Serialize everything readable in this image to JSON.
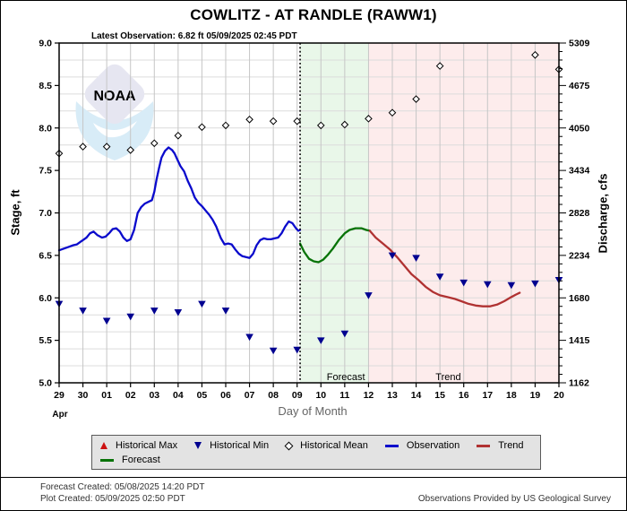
{
  "title": "COWLITZ - AT RANDLE  (RAWW1)",
  "subtitle": "Latest Observation: 6.82 ft 05/09/2025 02:45 PDT",
  "watermark": {
    "label": "NOAA"
  },
  "legend": {
    "items": [
      {
        "label": "Historical Max",
        "icon": "triangle-up-icon",
        "color": "#cc1111"
      },
      {
        "label": "Historical Min",
        "icon": "triangle-down-icon",
        "color": "#000090"
      },
      {
        "label": "Historical Mean",
        "icon": "diamond-icon",
        "color": "#000000"
      },
      {
        "label": "Observation",
        "icon": "line-swatch",
        "color": "#0a0acc"
      },
      {
        "label": "Trend",
        "icon": "line-swatch",
        "color": "#b03232"
      },
      {
        "label": "Forecast",
        "icon": "line-swatch",
        "color": "#077307"
      }
    ]
  },
  "footer": {
    "forecast_created": "Forecast Created: 05/08/2025 14:20 PDT",
    "plot_created": "Plot Created: 05/09/2025 02:50 PDT",
    "credit": "Observations Provided by US Geological Survey"
  },
  "chart_data": {
    "type": "line",
    "title": "COWLITZ - AT RANDLE  (RAWW1)",
    "xlabel": "Day of Month",
    "month_label": "Apr",
    "ylabel_left": "Stage, ft",
    "ylabel_right": "Discharge, cfs",
    "ylim": [
      5.0,
      9.0
    ],
    "x_days": 21,
    "grid": {
      "h_step_ft": 0.2,
      "v_step_days": 1
    },
    "x_ticks": [
      "29",
      "30",
      "01",
      "02",
      "03",
      "04",
      "05",
      "06",
      "07",
      "08",
      "09",
      "10",
      "11",
      "12",
      "13",
      "14",
      "15",
      "16",
      "17",
      "18",
      "19",
      "20"
    ],
    "y_left_ticks": [
      {
        "v": 9.0,
        "label": "9.0"
      },
      {
        "v": 8.5,
        "label": "8.5"
      },
      {
        "v": 8.0,
        "label": "8.0"
      },
      {
        "v": 7.5,
        "label": "7.5"
      },
      {
        "v": 7.0,
        "label": "7.0"
      },
      {
        "v": 6.5,
        "label": "6.5"
      },
      {
        "v": 6.0,
        "label": "6.0"
      },
      {
        "v": 5.5,
        "label": "5.5"
      },
      {
        "v": 5.0,
        "label": "5.0"
      }
    ],
    "y_right_ticks": [
      {
        "v": 9.0,
        "label": "5309"
      },
      {
        "v": 8.5,
        "label": "4675"
      },
      {
        "v": 8.0,
        "label": "4050"
      },
      {
        "v": 7.5,
        "label": "3434"
      },
      {
        "v": 7.0,
        "label": "2828"
      },
      {
        "v": 6.5,
        "label": "2234"
      },
      {
        "v": 6.0,
        "label": "1680"
      },
      {
        "v": 5.5,
        "label": "1415"
      },
      {
        "v": 5.0,
        "label": "1162"
      }
    ],
    "now_line_day": 10.125,
    "regions": [
      {
        "name": "forecast",
        "from": 10.125,
        "to": 13.0,
        "color": "#e9f7e9"
      },
      {
        "name": "trend",
        "from": 13.0,
        "to": 21.0,
        "color": "#fdecec"
      }
    ],
    "region_labels": [
      {
        "text": "Forecast",
        "x_day": 12.05
      },
      {
        "text": "Trend",
        "x_day": 16.35
      }
    ],
    "series": [
      {
        "name": "Observation",
        "color": "#0a0acc",
        "points": [
          [
            0,
            6.56
          ],
          [
            0.2,
            6.58
          ],
          [
            0.4,
            6.6
          ],
          [
            0.6,
            6.62
          ],
          [
            0.75,
            6.63
          ],
          [
            0.9,
            6.66
          ],
          [
            1.05,
            6.69
          ],
          [
            1.15,
            6.71
          ],
          [
            1.3,
            6.76
          ],
          [
            1.45,
            6.78
          ],
          [
            1.6,
            6.74
          ],
          [
            1.8,
            6.71
          ],
          [
            1.95,
            6.72
          ],
          [
            2.1,
            6.76
          ],
          [
            2.25,
            6.81
          ],
          [
            2.4,
            6.82
          ],
          [
            2.55,
            6.78
          ],
          [
            2.7,
            6.71
          ],
          [
            2.85,
            6.67
          ],
          [
            3.0,
            6.69
          ],
          [
            3.15,
            6.8
          ],
          [
            3.3,
            7.0
          ],
          [
            3.45,
            7.07
          ],
          [
            3.6,
            7.11
          ],
          [
            3.75,
            7.13
          ],
          [
            3.9,
            7.15
          ],
          [
            4.0,
            7.25
          ],
          [
            4.1,
            7.4
          ],
          [
            4.2,
            7.53
          ],
          [
            4.3,
            7.65
          ],
          [
            4.45,
            7.73
          ],
          [
            4.6,
            7.77
          ],
          [
            4.75,
            7.74
          ],
          [
            4.85,
            7.7
          ],
          [
            4.95,
            7.64
          ],
          [
            5.1,
            7.55
          ],
          [
            5.25,
            7.49
          ],
          [
            5.4,
            7.38
          ],
          [
            5.55,
            7.29
          ],
          [
            5.7,
            7.18
          ],
          [
            5.85,
            7.12
          ],
          [
            6.0,
            7.08
          ],
          [
            6.15,
            7.03
          ],
          [
            6.3,
            6.98
          ],
          [
            6.45,
            6.92
          ],
          [
            6.6,
            6.84
          ],
          [
            6.8,
            6.7
          ],
          [
            6.95,
            6.63
          ],
          [
            7.1,
            6.64
          ],
          [
            7.25,
            6.63
          ],
          [
            7.4,
            6.57
          ],
          [
            7.55,
            6.52
          ],
          [
            7.7,
            6.49
          ],
          [
            7.85,
            6.48
          ],
          [
            8.0,
            6.47
          ],
          [
            8.15,
            6.52
          ],
          [
            8.3,
            6.62
          ],
          [
            8.45,
            6.68
          ],
          [
            8.6,
            6.7
          ],
          [
            8.75,
            6.69
          ],
          [
            8.9,
            6.69
          ],
          [
            9.05,
            6.7
          ],
          [
            9.2,
            6.71
          ],
          [
            9.35,
            6.76
          ],
          [
            9.5,
            6.84
          ],
          [
            9.65,
            6.9
          ],
          [
            9.8,
            6.88
          ],
          [
            9.95,
            6.82
          ],
          [
            10.05,
            6.79
          ],
          [
            10.125,
            6.8
          ]
        ]
      },
      {
        "name": "Forecast",
        "color": "#077307",
        "points": [
          [
            10.125,
            6.64
          ],
          [
            10.3,
            6.54
          ],
          [
            10.5,
            6.46
          ],
          [
            10.7,
            6.43
          ],
          [
            10.9,
            6.42
          ],
          [
            11.1,
            6.45
          ],
          [
            11.3,
            6.51
          ],
          [
            11.5,
            6.58
          ],
          [
            11.75,
            6.68
          ],
          [
            12.0,
            6.76
          ],
          [
            12.2,
            6.8
          ],
          [
            12.45,
            6.82
          ],
          [
            12.7,
            6.82
          ],
          [
            12.9,
            6.8
          ],
          [
            13.05,
            6.79
          ]
        ]
      },
      {
        "name": "Trend",
        "color": "#b03232",
        "points": [
          [
            13.05,
            6.79
          ],
          [
            13.3,
            6.71
          ],
          [
            13.6,
            6.64
          ],
          [
            13.9,
            6.57
          ],
          [
            14.2,
            6.48
          ],
          [
            14.5,
            6.38
          ],
          [
            14.8,
            6.28
          ],
          [
            15.1,
            6.21
          ],
          [
            15.4,
            6.13
          ],
          [
            15.7,
            6.07
          ],
          [
            16.0,
            6.03
          ],
          [
            16.3,
            6.01
          ],
          [
            16.6,
            5.99
          ],
          [
            16.9,
            5.96
          ],
          [
            17.2,
            5.93
          ],
          [
            17.5,
            5.91
          ],
          [
            17.8,
            5.9
          ],
          [
            18.1,
            5.9
          ],
          [
            18.4,
            5.92
          ],
          [
            18.7,
            5.96
          ],
          [
            19.0,
            6.01
          ],
          [
            19.2,
            6.04
          ],
          [
            19.35,
            6.06
          ]
        ]
      }
    ],
    "markers": [
      {
        "name": "Historical Min",
        "shape": "triangle-down",
        "color": "#000090",
        "points": [
          [
            0,
            5.93
          ],
          [
            1,
            5.85
          ],
          [
            2,
            5.73
          ],
          [
            3,
            5.78
          ],
          [
            4,
            5.85
          ],
          [
            5,
            5.83
          ],
          [
            6,
            5.93
          ],
          [
            7,
            5.85
          ],
          [
            8,
            5.54
          ],
          [
            9,
            5.38
          ],
          [
            10,
            5.39
          ],
          [
            11,
            5.5
          ],
          [
            12,
            5.58
          ],
          [
            13,
            6.03
          ],
          [
            14,
            6.5
          ],
          [
            15,
            6.47
          ],
          [
            16,
            6.25
          ],
          [
            17,
            6.18
          ],
          [
            18,
            6.16
          ],
          [
            19,
            6.15
          ],
          [
            20,
            6.17
          ],
          [
            21,
            6.21
          ]
        ]
      },
      {
        "name": "Historical Mean",
        "shape": "diamond-open",
        "color": "#000000",
        "points": [
          [
            0,
            7.7
          ],
          [
            1,
            7.78
          ],
          [
            2,
            7.78
          ],
          [
            3,
            7.74
          ],
          [
            4,
            7.82
          ],
          [
            5,
            7.91
          ],
          [
            6,
            8.01
          ],
          [
            7,
            8.03
          ],
          [
            8,
            8.1
          ],
          [
            9,
            8.08
          ],
          [
            10,
            8.08
          ],
          [
            11,
            8.03
          ],
          [
            12,
            8.04
          ],
          [
            13,
            8.11
          ],
          [
            14,
            8.18
          ],
          [
            15,
            8.34
          ],
          [
            16,
            8.73
          ],
          [
            20,
            8.86
          ],
          [
            21,
            8.69
          ]
        ]
      },
      {
        "name": "Historical Max",
        "shape": "triangle-up",
        "color": "#cc1111",
        "points": []
      }
    ]
  }
}
